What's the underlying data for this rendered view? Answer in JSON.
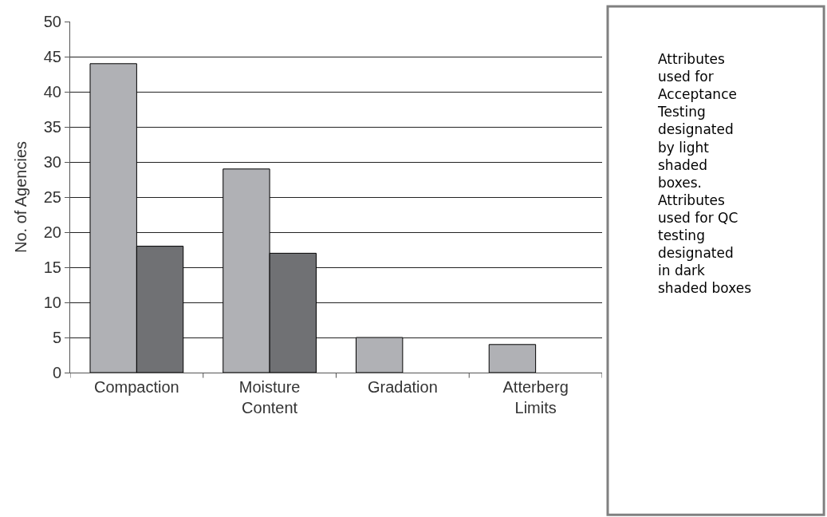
{
  "chart_data": {
    "type": "bar",
    "ylabel": "No. of Agencies",
    "categories": [
      "Compaction",
      "Moisture\nContent",
      "Gradation",
      "Atterberg\nLimits"
    ],
    "series": [
      {
        "color": "#b0b1b5",
        "values": [
          44,
          29,
          5,
          4
        ]
      },
      {
        "color": "#707174",
        "values": [
          18,
          17,
          null,
          null
        ]
      }
    ],
    "ylim": [
      0,
      50
    ],
    "yticks": [
      0,
      5,
      10,
      15,
      20,
      25,
      30,
      35,
      40,
      45,
      50
    ],
    "grid": "y",
    "legend": false,
    "annotations": [
      "Attributes used for Acceptance Testing designated by light shaded boxes. Attributes used for QC testing designated in dark shaded boxes"
    ]
  }
}
